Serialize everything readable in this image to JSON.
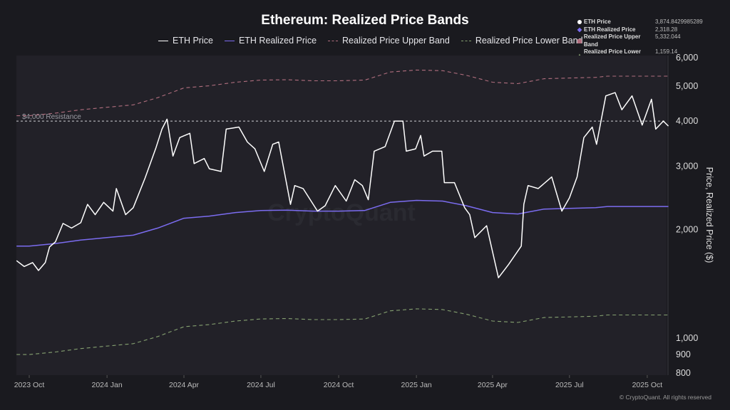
{
  "chart_data": {
    "type": "line",
    "title": "Ethereum: Realized Price Bands",
    "ylabel": "Price, Realized Price ($)",
    "yscale": "log",
    "ylim": [
      800,
      6000
    ],
    "yticks": [
      {
        "v": 6000,
        "label": "6,000"
      },
      {
        "v": 5000,
        "label": "5,000"
      },
      {
        "v": 4000,
        "label": "4,000"
      },
      {
        "v": 3000,
        "label": "3,000"
      },
      {
        "v": 2000,
        "label": "2,000"
      },
      {
        "v": 1000,
        "label": "1,000"
      },
      {
        "v": 900,
        "label": "900"
      },
      {
        "v": 800,
        "label": "800"
      }
    ],
    "xlim": [
      "2023-09-16",
      "2025-10-26"
    ],
    "xticks": [
      {
        "d": "2023-10-01",
        "label": "2023 Oct"
      },
      {
        "d": "2024-01-01",
        "label": "2024 Jan"
      },
      {
        "d": "2024-04-01",
        "label": "2024 Apr"
      },
      {
        "d": "2024-07-01",
        "label": "2024 Jul"
      },
      {
        "d": "2024-10-01",
        "label": "2024 Oct"
      },
      {
        "d": "2025-01-01",
        "label": "2025 Jan"
      },
      {
        "d": "2025-04-01",
        "label": "2025 Apr"
      },
      {
        "d": "2025-07-01",
        "label": "2025 Jul"
      },
      {
        "d": "2025-10-01",
        "label": "2025 Oct"
      }
    ],
    "grid": false,
    "legend_placement": "top",
    "annotation": {
      "value": 4000,
      "label": "$4,000 Resistance"
    },
    "watermark": "CryptoQuant",
    "series": [
      {
        "name": "ETH Price",
        "color": "#ffffff",
        "style": "solid",
        "latest": "3,874.8429985289",
        "points": [
          [
            "2023-09-16",
            1640
          ],
          [
            "2023-09-25",
            1580
          ],
          [
            "2023-10-05",
            1620
          ],
          [
            "2023-10-12",
            1540
          ],
          [
            "2023-10-20",
            1620
          ],
          [
            "2023-10-25",
            1790
          ],
          [
            "2023-11-01",
            1850
          ],
          [
            "2023-11-10",
            2080
          ],
          [
            "2023-11-20",
            2020
          ],
          [
            "2023-12-01",
            2090
          ],
          [
            "2023-12-09",
            2350
          ],
          [
            "2023-12-18",
            2200
          ],
          [
            "2023-12-28",
            2380
          ],
          [
            "2024-01-08",
            2250
          ],
          [
            "2024-01-12",
            2600
          ],
          [
            "2024-01-23",
            2200
          ],
          [
            "2024-02-01",
            2300
          ],
          [
            "2024-02-15",
            2780
          ],
          [
            "2024-02-28",
            3380
          ],
          [
            "2024-03-06",
            3800
          ],
          [
            "2024-03-12",
            4050
          ],
          [
            "2024-03-19",
            3200
          ],
          [
            "2024-03-27",
            3600
          ],
          [
            "2024-04-08",
            3700
          ],
          [
            "2024-04-13",
            3050
          ],
          [
            "2024-04-25",
            3150
          ],
          [
            "2024-05-01",
            2950
          ],
          [
            "2024-05-15",
            2900
          ],
          [
            "2024-05-21",
            3800
          ],
          [
            "2024-06-05",
            3850
          ],
          [
            "2024-06-15",
            3500
          ],
          [
            "2024-06-24",
            3350
          ],
          [
            "2024-07-05",
            2900
          ],
          [
            "2024-07-15",
            3450
          ],
          [
            "2024-07-22",
            3500
          ],
          [
            "2024-08-05",
            2350
          ],
          [
            "2024-08-10",
            2650
          ],
          [
            "2024-08-20",
            2600
          ],
          [
            "2024-09-06",
            2250
          ],
          [
            "2024-09-15",
            2330
          ],
          [
            "2024-09-27",
            2650
          ],
          [
            "2024-10-10",
            2400
          ],
          [
            "2024-10-20",
            2750
          ],
          [
            "2024-10-29",
            2650
          ],
          [
            "2024-11-05",
            2420
          ],
          [
            "2024-11-12",
            3300
          ],
          [
            "2024-11-25",
            3400
          ],
          [
            "2024-12-06",
            4000
          ],
          [
            "2024-12-16",
            4000
          ],
          [
            "2024-12-20",
            3300
          ],
          [
            "2024-12-31",
            3350
          ],
          [
            "2025-01-06",
            3650
          ],
          [
            "2025-01-10",
            3200
          ],
          [
            "2025-01-20",
            3300
          ],
          [
            "2025-01-31",
            3300
          ],
          [
            "2025-02-03",
            2700
          ],
          [
            "2025-02-15",
            2700
          ],
          [
            "2025-02-27",
            2300
          ],
          [
            "2025-03-05",
            2200
          ],
          [
            "2025-03-11",
            1900
          ],
          [
            "2025-03-25",
            2050
          ],
          [
            "2025-04-08",
            1470
          ],
          [
            "2025-04-20",
            1600
          ],
          [
            "2025-05-05",
            1800
          ],
          [
            "2025-05-08",
            2350
          ],
          [
            "2025-05-13",
            2650
          ],
          [
            "2025-05-25",
            2600
          ],
          [
            "2025-06-10",
            2800
          ],
          [
            "2025-06-22",
            2250
          ],
          [
            "2025-07-01",
            2450
          ],
          [
            "2025-07-10",
            2800
          ],
          [
            "2025-07-18",
            3600
          ],
          [
            "2025-07-28",
            3850
          ],
          [
            "2025-08-02",
            3450
          ],
          [
            "2025-08-13",
            4700
          ],
          [
            "2025-08-24",
            4800
          ],
          [
            "2025-09-01",
            4300
          ],
          [
            "2025-09-13",
            4700
          ],
          [
            "2025-09-25",
            3900
          ],
          [
            "2025-10-06",
            4600
          ],
          [
            "2025-10-11",
            3800
          ],
          [
            "2025-10-20",
            4000
          ],
          [
            "2025-10-26",
            3875
          ]
        ]
      },
      {
        "name": "ETH Realized Price",
        "color": "#7b6cf0",
        "style": "solid",
        "latest": "2,318.28",
        "points": [
          [
            "2023-09-16",
            1800
          ],
          [
            "2023-10-01",
            1800
          ],
          [
            "2023-11-01",
            1830
          ],
          [
            "2023-12-01",
            1870
          ],
          [
            "2024-01-01",
            1900
          ],
          [
            "2024-02-01",
            1930
          ],
          [
            "2024-03-01",
            2020
          ],
          [
            "2024-04-01",
            2150
          ],
          [
            "2024-05-01",
            2180
          ],
          [
            "2024-06-01",
            2230
          ],
          [
            "2024-07-01",
            2260
          ],
          [
            "2024-08-01",
            2265
          ],
          [
            "2024-09-01",
            2250
          ],
          [
            "2024-10-01",
            2250
          ],
          [
            "2024-11-01",
            2260
          ],
          [
            "2024-12-01",
            2380
          ],
          [
            "2025-01-01",
            2410
          ],
          [
            "2025-02-01",
            2400
          ],
          [
            "2025-03-01",
            2330
          ],
          [
            "2025-04-01",
            2230
          ],
          [
            "2025-05-01",
            2210
          ],
          [
            "2025-06-01",
            2280
          ],
          [
            "2025-07-01",
            2290
          ],
          [
            "2025-08-01",
            2300
          ],
          [
            "2025-08-15",
            2318
          ],
          [
            "2025-09-01",
            2318
          ],
          [
            "2025-10-01",
            2318
          ],
          [
            "2025-10-26",
            2318
          ]
        ]
      },
      {
        "name": "Realized Price Upper Band",
        "color": "#b06e7e",
        "style": "dashed",
        "latest": "5,332.044",
        "points": [
          [
            "2023-09-16",
            4140
          ],
          [
            "2023-10-01",
            4140
          ],
          [
            "2023-11-01",
            4209
          ],
          [
            "2023-12-01",
            4301
          ],
          [
            "2024-01-01",
            4370
          ],
          [
            "2024-02-01",
            4439
          ],
          [
            "2024-03-01",
            4646
          ],
          [
            "2024-04-01",
            4945
          ],
          [
            "2024-05-01",
            5014
          ],
          [
            "2024-06-01",
            5129
          ],
          [
            "2024-07-01",
            5198
          ],
          [
            "2024-08-01",
            5210
          ],
          [
            "2024-09-01",
            5175
          ],
          [
            "2024-10-01",
            5175
          ],
          [
            "2024-11-01",
            5198
          ],
          [
            "2024-12-01",
            5474
          ],
          [
            "2025-01-01",
            5543
          ],
          [
            "2025-02-01",
            5520
          ],
          [
            "2025-03-01",
            5359
          ],
          [
            "2025-04-01",
            5129
          ],
          [
            "2025-05-01",
            5083
          ],
          [
            "2025-06-01",
            5244
          ],
          [
            "2025-07-01",
            5267
          ],
          [
            "2025-08-01",
            5290
          ],
          [
            "2025-08-15",
            5331
          ],
          [
            "2025-09-01",
            5331
          ],
          [
            "2025-10-01",
            5331
          ],
          [
            "2025-10-26",
            5332
          ]
        ]
      },
      {
        "name": "Realized Price Lower Band",
        "color": "#85a070",
        "style": "dashed",
        "latest": "1,159.14",
        "points": [
          [
            "2023-09-16",
            900
          ],
          [
            "2023-10-01",
            900
          ],
          [
            "2023-11-01",
            915
          ],
          [
            "2023-12-01",
            935
          ],
          [
            "2024-01-01",
            950
          ],
          [
            "2024-02-01",
            965
          ],
          [
            "2024-03-01",
            1010
          ],
          [
            "2024-04-01",
            1075
          ],
          [
            "2024-05-01",
            1090
          ],
          [
            "2024-06-01",
            1115
          ],
          [
            "2024-07-01",
            1130
          ],
          [
            "2024-08-01",
            1133
          ],
          [
            "2024-09-01",
            1125
          ],
          [
            "2024-10-01",
            1125
          ],
          [
            "2024-11-01",
            1130
          ],
          [
            "2024-12-01",
            1190
          ],
          [
            "2025-01-01",
            1205
          ],
          [
            "2025-02-01",
            1200
          ],
          [
            "2025-03-01",
            1165
          ],
          [
            "2025-04-01",
            1115
          ],
          [
            "2025-05-01",
            1105
          ],
          [
            "2025-06-01",
            1140
          ],
          [
            "2025-07-01",
            1145
          ],
          [
            "2025-08-01",
            1150
          ],
          [
            "2025-08-15",
            1159
          ],
          [
            "2025-09-01",
            1159
          ],
          [
            "2025-10-01",
            1159
          ],
          [
            "2025-10-26",
            1159
          ]
        ]
      }
    ]
  },
  "footer": "© CryptoQuant. All rights reserved",
  "colors": {
    "background": "#1a1a1f",
    "plot_background": "#222128"
  }
}
